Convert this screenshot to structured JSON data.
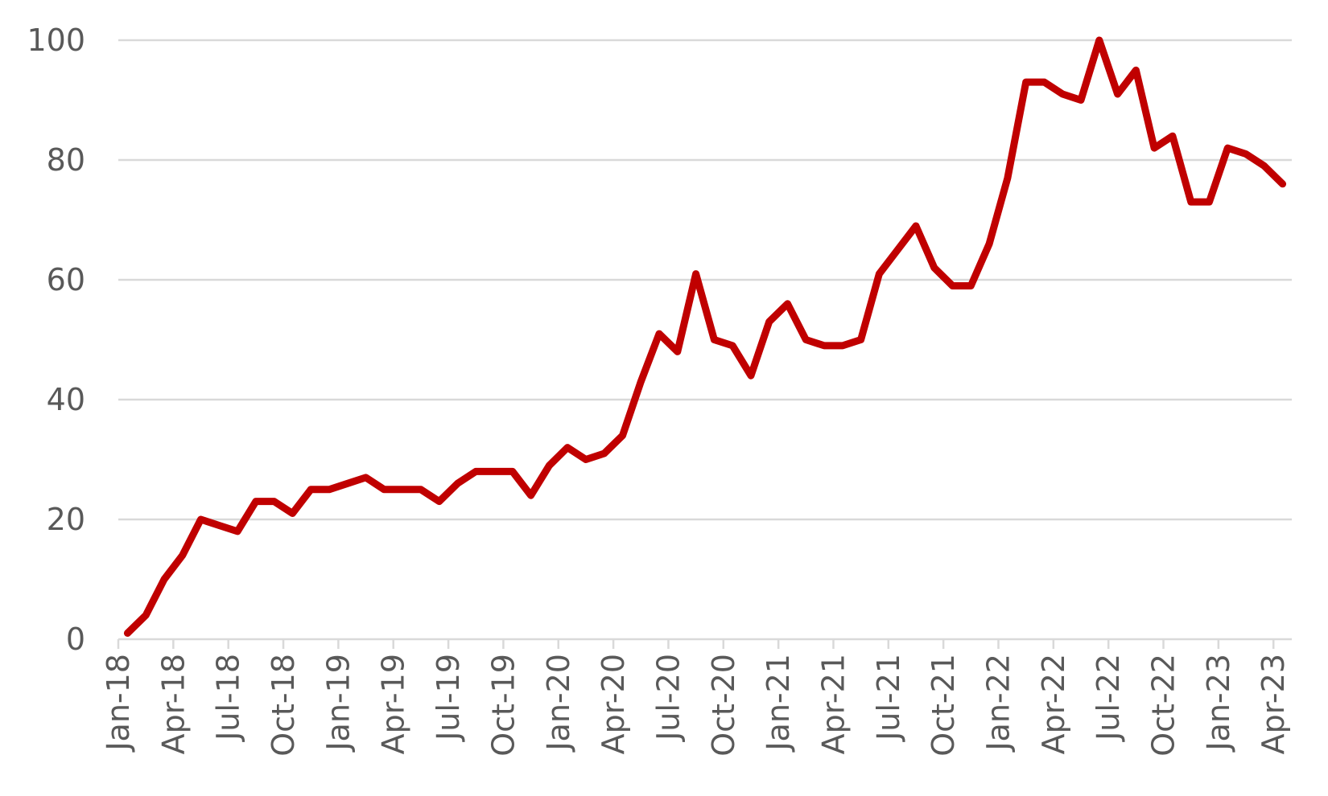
{
  "chart_data": {
    "type": "line",
    "title": "",
    "xlabel": "",
    "ylabel": "",
    "ylim": [
      0,
      100
    ],
    "yticks": [
      0,
      20,
      40,
      60,
      80,
      100
    ],
    "grid": true,
    "legend": "none",
    "x": [
      "Jan-18",
      "Feb-18",
      "Mar-18",
      "Apr-18",
      "May-18",
      "Jun-18",
      "Jul-18",
      "Aug-18",
      "Sep-18",
      "Oct-18",
      "Nov-18",
      "Dec-18",
      "Jan-19",
      "Feb-19",
      "Mar-19",
      "Apr-19",
      "May-19",
      "Jun-19",
      "Jul-19",
      "Aug-19",
      "Sep-19",
      "Oct-19",
      "Nov-19",
      "Dec-19",
      "Jan-20",
      "Feb-20",
      "Mar-20",
      "Apr-20",
      "May-20",
      "Jun-20",
      "Jul-20",
      "Aug-20",
      "Sep-20",
      "Oct-20",
      "Nov-20",
      "Dec-20",
      "Jan-21",
      "Feb-21",
      "Mar-21",
      "Apr-21",
      "May-21",
      "Jun-21",
      "Jul-21",
      "Aug-21",
      "Sep-21",
      "Oct-21",
      "Nov-21",
      "Dec-21",
      "Jan-22",
      "Feb-22",
      "Mar-22",
      "Apr-22",
      "May-22",
      "Jun-22",
      "Jul-22",
      "Aug-22",
      "Sep-22",
      "Oct-22",
      "Nov-22",
      "Dec-22",
      "Jan-23",
      "Feb-23",
      "Mar-23",
      "Apr-23"
    ],
    "xtick_labels": [
      "Jan-18",
      "Apr-18",
      "Jul-18",
      "Oct-18",
      "Jan-19",
      "Apr-19",
      "Jul-19",
      "Oct-19",
      "Jan-20",
      "Apr-20",
      "Jul-20",
      "Oct-20",
      "Jan-21",
      "Apr-21",
      "Jul-21",
      "Oct-21",
      "Jan-22",
      "Apr-22",
      "Jul-22",
      "Oct-22",
      "Jan-23",
      "Apr-23"
    ],
    "series": [
      {
        "color": "#c00000",
        "values": [
          1,
          4,
          10,
          14,
          20,
          19,
          18,
          23,
          23,
          21,
          25,
          25,
          26,
          27,
          25,
          25,
          25,
          23,
          26,
          28,
          28,
          28,
          24,
          29,
          32,
          30,
          31,
          34,
          43,
          51,
          48,
          61,
          50,
          49,
          44,
          53,
          56,
          50,
          49,
          49,
          50,
          61,
          65,
          69,
          62,
          59,
          59,
          66,
          77,
          93,
          93,
          91,
          90,
          100,
          91,
          95,
          82,
          84,
          73,
          73,
          82,
          81,
          79,
          76
        ]
      }
    ]
  }
}
